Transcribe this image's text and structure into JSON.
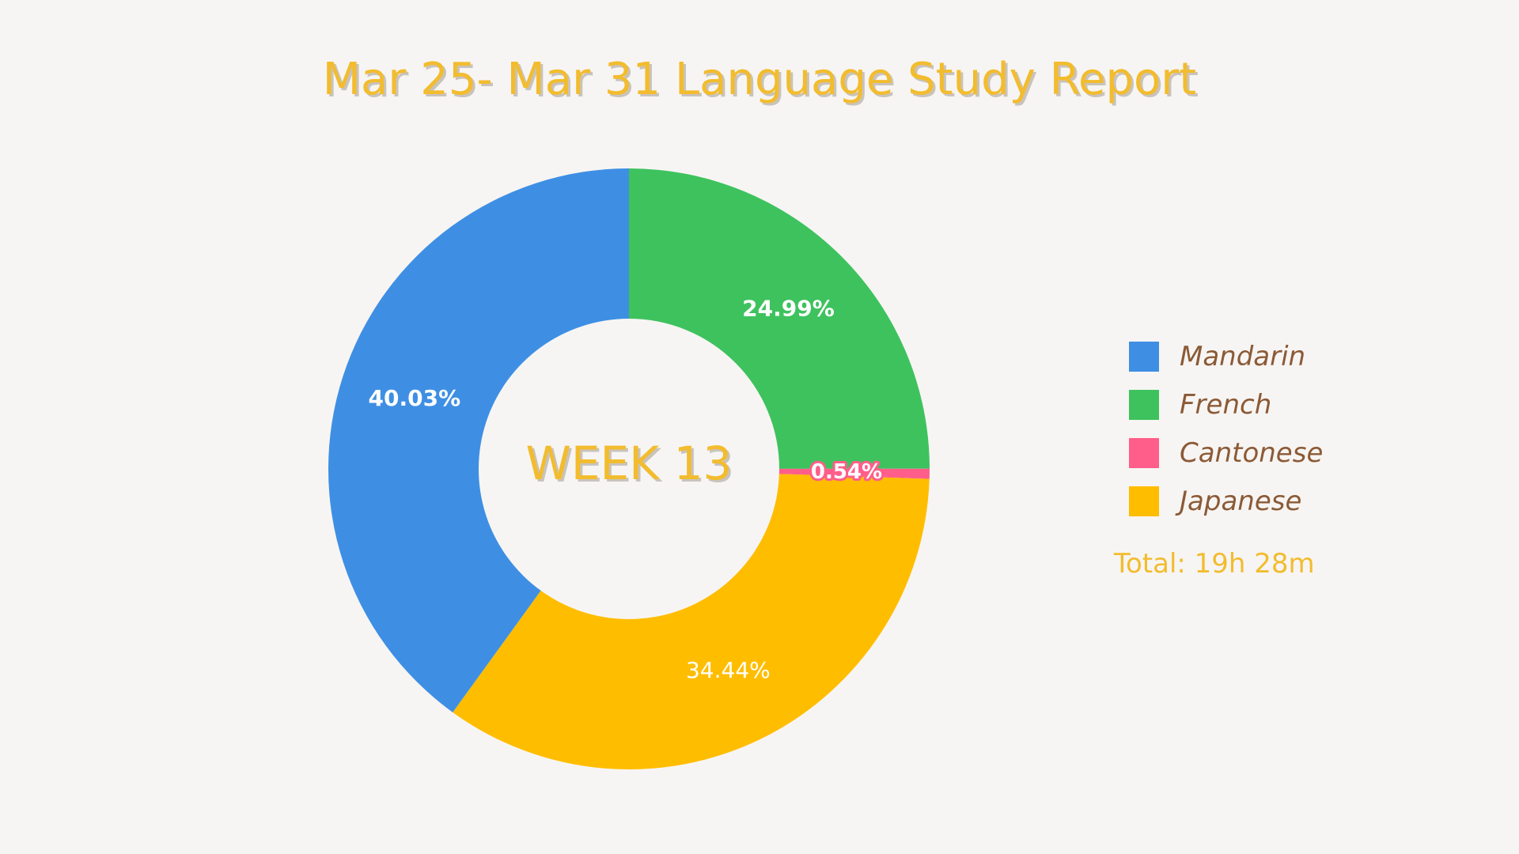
{
  "title": "Mar 25- Mar 31 Language Study Report",
  "center_label": "WEEK 13",
  "total": "Total: 19h 28m",
  "chart_data": {
    "type": "pie",
    "donut": true,
    "title": "Mar 25- Mar 31 Language Study Report",
    "categories": [
      "Mandarin",
      "French",
      "Cantonese",
      "Japanese"
    ],
    "values": [
      40.03,
      24.99,
      0.54,
      34.44
    ],
    "labels": [
      "40.03%",
      "24.99%",
      "0.54%",
      "34.44%"
    ],
    "colors": [
      "#3e8fe4",
      "#3ec25e",
      "#ff5e8a",
      "#ffbd00"
    ],
    "start_category": "French",
    "start_angle_deg": 0,
    "direction": "clockwise",
    "legend_position": "right"
  },
  "legend": [
    {
      "label": "Mandarin",
      "color": "#3e8fe4"
    },
    {
      "label": "French",
      "color": "#3ec25e"
    },
    {
      "label": "Cantonese",
      "color": "#ff5e8a"
    },
    {
      "label": "Japanese",
      "color": "#ffbd00"
    }
  ]
}
